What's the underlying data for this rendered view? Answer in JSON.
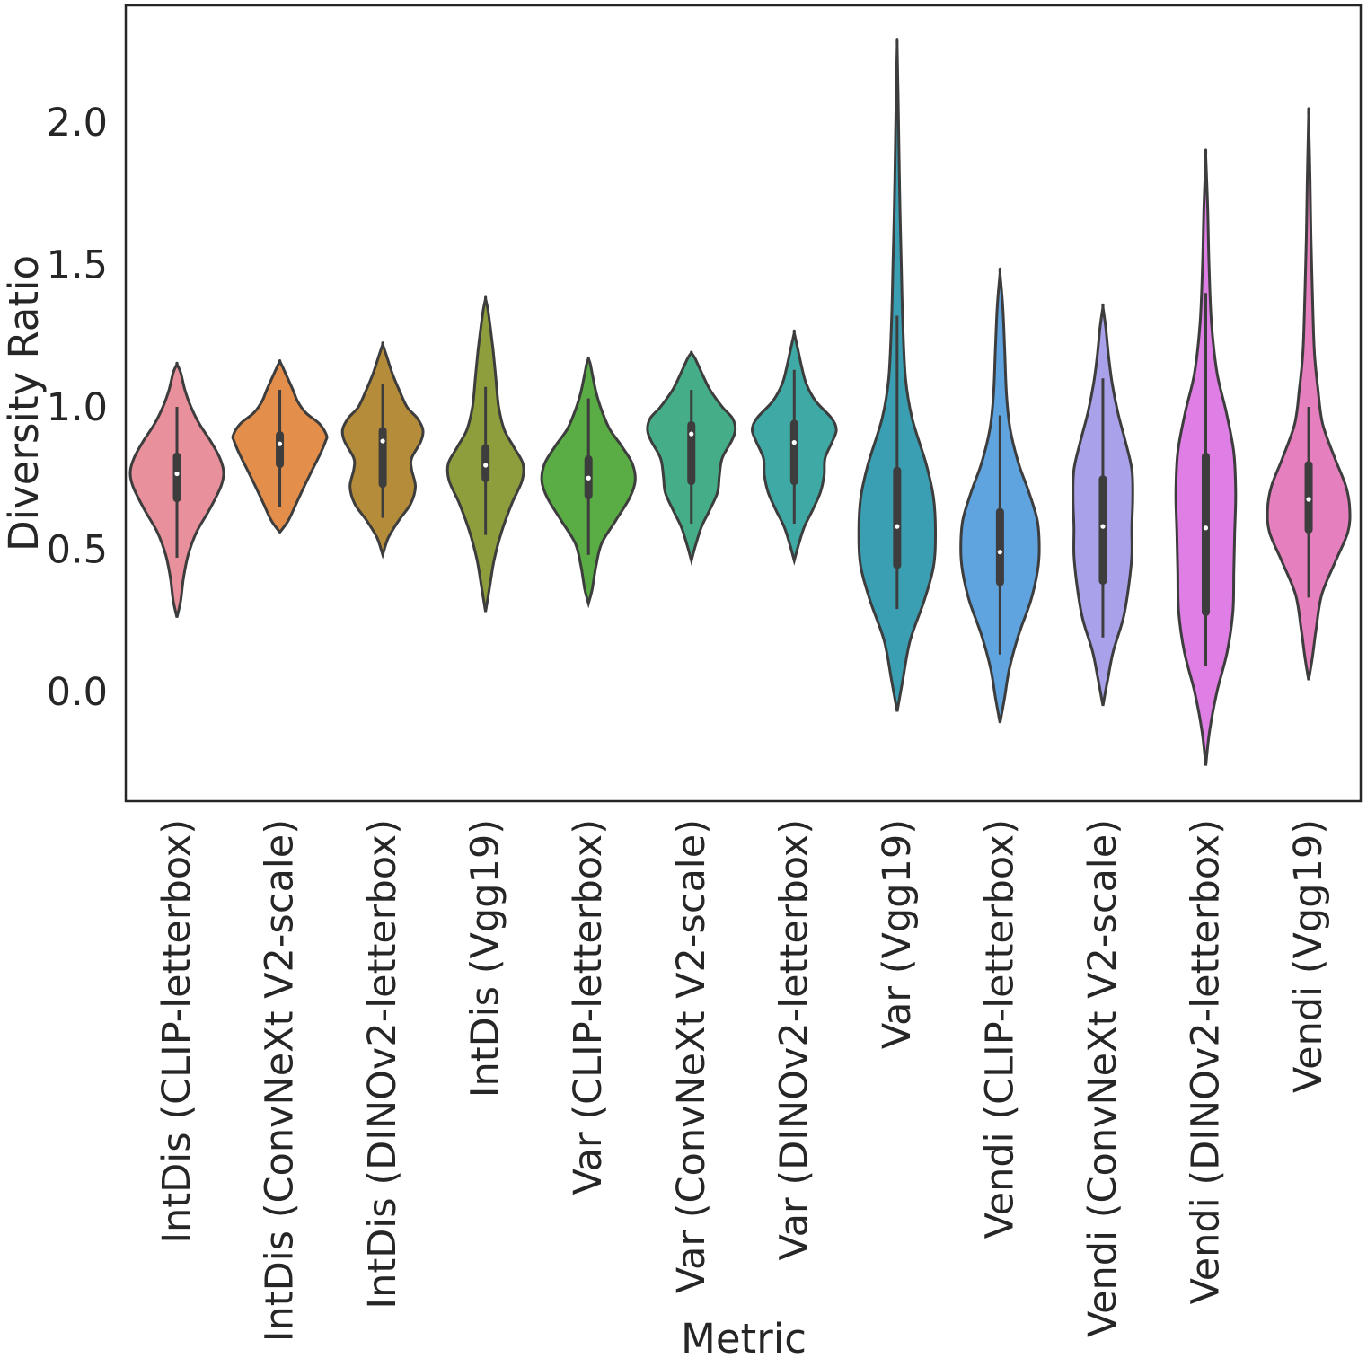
{
  "chart_data": {
    "type": "violin",
    "xlabel": "Metric",
    "ylabel": "Diversity Ratio",
    "ylim": [
      -0.38,
      2.42
    ],
    "yticks": [
      0.0,
      0.5,
      1.0,
      1.5,
      2.0
    ],
    "ytick_labels": [
      "0.0",
      "0.5",
      "1.0",
      "1.5",
      "2.0"
    ],
    "grid": false,
    "categories": [
      {
        "label": "IntDis (CLIP-letterbox)",
        "color": "#e8909c",
        "min": 0.26,
        "max": 1.15,
        "whisker_low": 0.47,
        "whisker_high": 1.0,
        "q1": 0.665,
        "median": 0.765,
        "q3": 0.84,
        "density": [
          [
            0.26,
            0.0
          ],
          [
            0.32,
            0.08
          ],
          [
            0.4,
            0.14
          ],
          [
            0.48,
            0.24
          ],
          [
            0.56,
            0.42
          ],
          [
            0.64,
            0.7
          ],
          [
            0.72,
            0.94
          ],
          [
            0.77,
            1.0
          ],
          [
            0.82,
            0.92
          ],
          [
            0.88,
            0.72
          ],
          [
            0.94,
            0.48
          ],
          [
            1.0,
            0.3
          ],
          [
            1.06,
            0.17
          ],
          [
            1.12,
            0.08
          ],
          [
            1.15,
            0.0
          ]
        ]
      },
      {
        "label": "IntDis (ConvNeXt V2-scale)",
        "color": "#e38e4b",
        "min": 0.56,
        "max": 1.16,
        "whisker_low": 0.65,
        "whisker_high": 1.06,
        "q1": 0.785,
        "median": 0.87,
        "q3": 0.915,
        "density": [
          [
            0.56,
            0.0
          ],
          [
            0.6,
            0.18
          ],
          [
            0.66,
            0.35
          ],
          [
            0.72,
            0.52
          ],
          [
            0.78,
            0.7
          ],
          [
            0.84,
            0.88
          ],
          [
            0.88,
            0.98
          ],
          [
            0.9,
            1.0
          ],
          [
            0.94,
            0.85
          ],
          [
            0.98,
            0.55
          ],
          [
            1.02,
            0.38
          ],
          [
            1.06,
            0.28
          ],
          [
            1.1,
            0.17
          ],
          [
            1.14,
            0.06
          ],
          [
            1.16,
            0.0
          ]
        ]
      },
      {
        "label": "IntDis (DINOv2-letterbox)",
        "color": "#b48c3a",
        "min": 0.48,
        "max": 1.22,
        "whisker_low": 0.61,
        "whisker_high": 1.08,
        "q1": 0.715,
        "median": 0.88,
        "q3": 0.93,
        "density": [
          [
            0.48,
            0.0
          ],
          [
            0.54,
            0.12
          ],
          [
            0.6,
            0.34
          ],
          [
            0.66,
            0.6
          ],
          [
            0.72,
            0.7
          ],
          [
            0.78,
            0.62
          ],
          [
            0.82,
            0.62
          ],
          [
            0.88,
            0.82
          ],
          [
            0.92,
            0.86
          ],
          [
            0.96,
            0.74
          ],
          [
            1.0,
            0.52
          ],
          [
            1.06,
            0.35
          ],
          [
            1.12,
            0.2
          ],
          [
            1.18,
            0.08
          ],
          [
            1.22,
            0.0
          ]
        ]
      },
      {
        "label": "IntDis (Vgg19)",
        "color": "#8f9e3c",
        "min": 0.28,
        "max": 1.38,
        "whisker_low": 0.55,
        "whisker_high": 1.07,
        "q1": 0.735,
        "median": 0.795,
        "q3": 0.87,
        "density": [
          [
            0.28,
            0.0
          ],
          [
            0.36,
            0.08
          ],
          [
            0.46,
            0.18
          ],
          [
            0.56,
            0.34
          ],
          [
            0.66,
            0.56
          ],
          [
            0.74,
            0.78
          ],
          [
            0.8,
            0.8
          ],
          [
            0.86,
            0.6
          ],
          [
            0.92,
            0.4
          ],
          [
            1.0,
            0.28
          ],
          [
            1.1,
            0.22
          ],
          [
            1.2,
            0.16
          ],
          [
            1.28,
            0.1
          ],
          [
            1.34,
            0.05
          ],
          [
            1.38,
            0.0
          ]
        ]
      },
      {
        "label": "Var (CLIP-letterbox)",
        "color": "#5aac44",
        "min": 0.31,
        "max": 1.17,
        "whisker_low": 0.48,
        "whisker_high": 1.03,
        "q1": 0.675,
        "median": 0.75,
        "q3": 0.83,
        "density": [
          [
            0.31,
            0.0
          ],
          [
            0.36,
            0.08
          ],
          [
            0.44,
            0.16
          ],
          [
            0.52,
            0.28
          ],
          [
            0.6,
            0.58
          ],
          [
            0.68,
            0.88
          ],
          [
            0.74,
            1.0
          ],
          [
            0.8,
            0.94
          ],
          [
            0.86,
            0.72
          ],
          [
            0.92,
            0.46
          ],
          [
            0.98,
            0.3
          ],
          [
            1.04,
            0.18
          ],
          [
            1.1,
            0.1
          ],
          [
            1.15,
            0.04
          ],
          [
            1.17,
            0.0
          ]
        ]
      },
      {
        "label": "Var (ConvNeXt V2-scale)",
        "color": "#45ad88",
        "min": 0.46,
        "max": 1.19,
        "whisker_low": 0.59,
        "whisker_high": 1.06,
        "q1": 0.725,
        "median": 0.905,
        "q3": 0.95,
        "density": [
          [
            0.46,
            0.0
          ],
          [
            0.52,
            0.1
          ],
          [
            0.58,
            0.22
          ],
          [
            0.64,
            0.4
          ],
          [
            0.7,
            0.56
          ],
          [
            0.76,
            0.6
          ],
          [
            0.82,
            0.66
          ],
          [
            0.88,
            0.86
          ],
          [
            0.92,
            0.94
          ],
          [
            0.96,
            0.88
          ],
          [
            1.0,
            0.66
          ],
          [
            1.06,
            0.4
          ],
          [
            1.12,
            0.22
          ],
          [
            1.17,
            0.08
          ],
          [
            1.19,
            0.0
          ]
        ]
      },
      {
        "label": "Var (DINOv2-letterbox)",
        "color": "#3fa9a5",
        "min": 0.46,
        "max": 1.26,
        "whisker_low": 0.59,
        "whisker_high": 1.13,
        "q1": 0.725,
        "median": 0.875,
        "q3": 0.955,
        "density": [
          [
            0.46,
            0.0
          ],
          [
            0.52,
            0.1
          ],
          [
            0.58,
            0.22
          ],
          [
            0.64,
            0.4
          ],
          [
            0.7,
            0.56
          ],
          [
            0.76,
            0.64
          ],
          [
            0.82,
            0.66
          ],
          [
            0.88,
            0.82
          ],
          [
            0.92,
            0.9
          ],
          [
            0.96,
            0.8
          ],
          [
            1.02,
            0.46
          ],
          [
            1.08,
            0.26
          ],
          [
            1.14,
            0.16
          ],
          [
            1.2,
            0.08
          ],
          [
            1.26,
            0.0
          ]
        ]
      },
      {
        "label": "Var (Vgg19)",
        "color": "#3b9fb3",
        "min": -0.07,
        "max": 2.27,
        "whisker_low": 0.29,
        "whisker_high": 1.32,
        "q1": 0.43,
        "median": 0.58,
        "q3": 0.79,
        "density": [
          [
            -0.07,
            0.0
          ],
          [
            0.04,
            0.12
          ],
          [
            0.18,
            0.28
          ],
          [
            0.32,
            0.58
          ],
          [
            0.44,
            0.78
          ],
          [
            0.56,
            0.82
          ],
          [
            0.68,
            0.78
          ],
          [
            0.8,
            0.62
          ],
          [
            0.96,
            0.32
          ],
          [
            1.1,
            0.18
          ],
          [
            1.3,
            0.12
          ],
          [
            1.5,
            0.09
          ],
          [
            1.7,
            0.06
          ],
          [
            1.9,
            0.04
          ],
          [
            2.1,
            0.02
          ],
          [
            2.27,
            0.0
          ]
        ]
      },
      {
        "label": "Vendi (CLIP-letterbox)",
        "color": "#5fa3df",
        "min": -0.11,
        "max": 1.47,
        "whisker_low": 0.13,
        "whisker_high": 0.97,
        "q1": 0.37,
        "median": 0.49,
        "q3": 0.645,
        "density": [
          [
            -0.11,
            0.0
          ],
          [
            -0.02,
            0.1
          ],
          [
            0.08,
            0.2
          ],
          [
            0.2,
            0.4
          ],
          [
            0.32,
            0.66
          ],
          [
            0.42,
            0.8
          ],
          [
            0.5,
            0.84
          ],
          [
            0.6,
            0.8
          ],
          [
            0.7,
            0.62
          ],
          [
            0.8,
            0.4
          ],
          [
            0.92,
            0.22
          ],
          [
            1.04,
            0.14
          ],
          [
            1.2,
            0.1
          ],
          [
            1.35,
            0.06
          ],
          [
            1.47,
            0.0
          ]
        ]
      },
      {
        "label": "Vendi (ConvNeXt V2-scale)",
        "color": "#a9a2ea",
        "min": -0.05,
        "max": 1.35,
        "whisker_low": 0.19,
        "whisker_high": 1.1,
        "q1": 0.375,
        "median": 0.58,
        "q3": 0.76,
        "density": [
          [
            -0.05,
            0.0
          ],
          [
            0.04,
            0.1
          ],
          [
            0.14,
            0.22
          ],
          [
            0.26,
            0.44
          ],
          [
            0.38,
            0.56
          ],
          [
            0.48,
            0.62
          ],
          [
            0.58,
            0.62
          ],
          [
            0.68,
            0.64
          ],
          [
            0.78,
            0.62
          ],
          [
            0.88,
            0.48
          ],
          [
            0.98,
            0.32
          ],
          [
            1.08,
            0.2
          ],
          [
            1.18,
            0.12
          ],
          [
            1.28,
            0.06
          ],
          [
            1.35,
            0.0
          ]
        ]
      },
      {
        "label": "Vendi (DINOv2-letterbox)",
        "color": "#df7ee4",
        "min": -0.26,
        "max": 1.88,
        "whisker_low": 0.09,
        "whisker_high": 1.4,
        "q1": 0.265,
        "median": 0.575,
        "q3": 0.84,
        "density": [
          [
            -0.26,
            0.0
          ],
          [
            -0.14,
            0.08
          ],
          [
            0.0,
            0.24
          ],
          [
            0.14,
            0.46
          ],
          [
            0.28,
            0.58
          ],
          [
            0.42,
            0.6
          ],
          [
            0.56,
            0.62
          ],
          [
            0.7,
            0.64
          ],
          [
            0.84,
            0.6
          ],
          [
            0.98,
            0.44
          ],
          [
            1.12,
            0.24
          ],
          [
            1.3,
            0.12
          ],
          [
            1.5,
            0.07
          ],
          [
            1.7,
            0.04
          ],
          [
            1.88,
            0.0
          ]
        ]
      },
      {
        "label": "Vendi (Vgg19)",
        "color": "#e67fbe",
        "min": 0.04,
        "max": 2.02,
        "whisker_low": 0.33,
        "whisker_high": 1.0,
        "q1": 0.555,
        "median": 0.675,
        "q3": 0.81,
        "density": [
          [
            0.04,
            0.0
          ],
          [
            0.12,
            0.08
          ],
          [
            0.22,
            0.16
          ],
          [
            0.34,
            0.28
          ],
          [
            0.46,
            0.58
          ],
          [
            0.56,
            0.84
          ],
          [
            0.64,
            0.88
          ],
          [
            0.72,
            0.8
          ],
          [
            0.82,
            0.56
          ],
          [
            0.94,
            0.3
          ],
          [
            1.06,
            0.2
          ],
          [
            1.2,
            0.12
          ],
          [
            1.4,
            0.08
          ],
          [
            1.6,
            0.05
          ],
          [
            1.8,
            0.03
          ],
          [
            2.02,
            0.0
          ]
        ]
      }
    ]
  }
}
